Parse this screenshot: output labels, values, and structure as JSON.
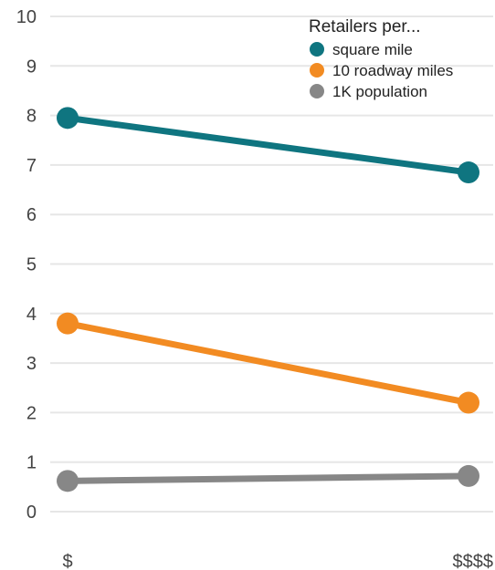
{
  "chart_data": {
    "type": "line",
    "categories": [
      "$",
      "$$$$"
    ],
    "ylim": [
      0,
      10
    ],
    "yticks": [
      0,
      1,
      2,
      3,
      4,
      5,
      6,
      7,
      8,
      9,
      10
    ],
    "grid": true,
    "legend": {
      "title": "Retailers per...",
      "position": "top-right"
    },
    "series": [
      {
        "name": "square mile",
        "values": [
          7.95,
          6.85
        ],
        "color": "#0f7580"
      },
      {
        "name": "10 roadway miles",
        "values": [
          3.8,
          2.2
        ],
        "color": "#f28b22"
      },
      {
        "name": "1K population",
        "values": [
          0.62,
          0.72
        ],
        "color": "#878787"
      }
    ]
  }
}
